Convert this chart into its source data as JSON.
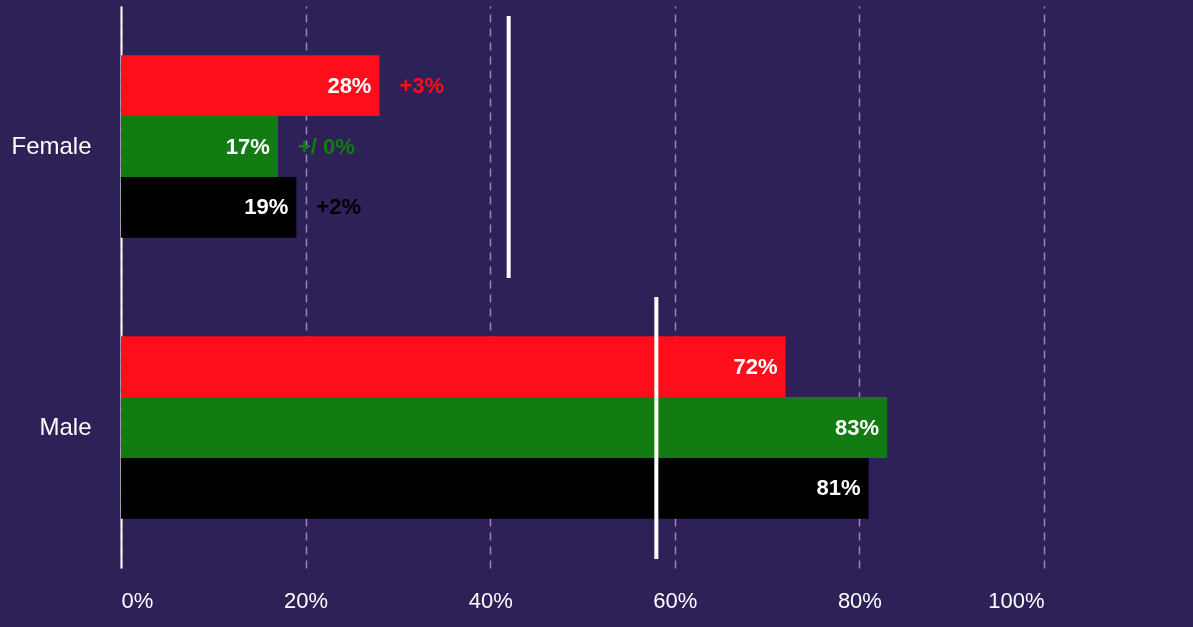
{
  "chart_data": {
    "type": "bar",
    "orientation": "horizontal",
    "categories": [
      "Female",
      "Male"
    ],
    "series": [
      {
        "color": "#ff0d1a",
        "values": [
          28,
          72
        ],
        "value_labels": [
          "28%",
          "72%"
        ]
      },
      {
        "color": "#127c12",
        "values": [
          17,
          83
        ],
        "value_labels": [
          "17%",
          "83%"
        ]
      },
      {
        "color": "#000000",
        "values": [
          19,
          81
        ],
        "value_labels": [
          "19%",
          "81%"
        ]
      }
    ],
    "annotations": [
      "+3%",
      "+/ 0%",
      "+2%"
    ],
    "ref_lines": [
      {
        "axis": "x",
        "value": 42,
        "color": "#ffffff"
      },
      {
        "axis": "x",
        "value": 58,
        "color": "#ffffff"
      }
    ],
    "xlim": [
      0,
      100
    ],
    "xticks": [
      {
        "value": 0,
        "label": "0%"
      },
      {
        "value": 20,
        "label": "20%"
      },
      {
        "value": 40,
        "label": "40%"
      },
      {
        "value": 60,
        "label": "60%"
      },
      {
        "value": 80,
        "label": "80%"
      },
      {
        "value": 100,
        "label": "100%"
      }
    ],
    "grid": "x",
    "legend": false
  }
}
